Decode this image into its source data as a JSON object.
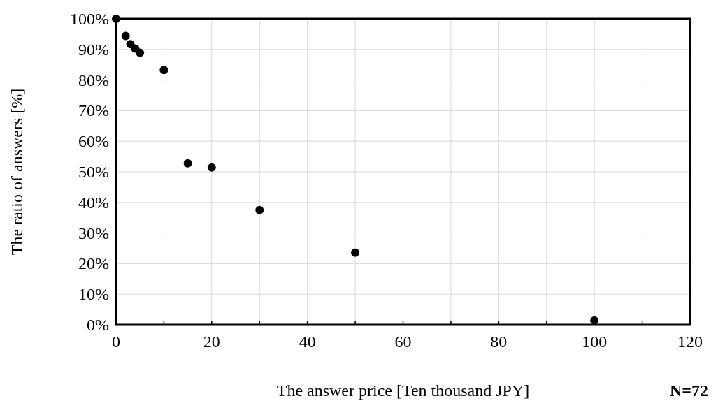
{
  "chart_data": {
    "type": "scatter",
    "xlabel": "The answer price [Ten thousand JPY]",
    "ylabel": "The ratio of answers [%]",
    "annotations": [
      "N=72"
    ],
    "x": [
      0,
      2,
      3,
      4,
      5,
      10,
      15,
      20,
      30,
      50,
      100
    ],
    "series": [
      {
        "color": "#000000",
        "values": [
          100,
          94.4,
          91.7,
          90.3,
          88.9,
          83.3,
          52.8,
          51.4,
          37.5,
          23.6,
          1.4
        ]
      }
    ],
    "xlim": [
      0,
      120
    ],
    "xticks": [
      0,
      {
        "value": 10,
        "label": null
      },
      20,
      {
        "value": 30,
        "label": null
      },
      40,
      {
        "value": 50,
        "label": null
      },
      60,
      {
        "value": 70,
        "label": null
      },
      80,
      {
        "value": 90,
        "label": null
      },
      100,
      {
        "value": 110,
        "label": null
      },
      120
    ],
    "ylim": [
      0,
      100
    ],
    "yticks": [
      {
        "value": 0,
        "label": "0%"
      },
      {
        "value": 10,
        "label": "10%"
      },
      {
        "value": 20,
        "label": "20%"
      },
      {
        "value": 30,
        "label": "30%"
      },
      {
        "value": 40,
        "label": "40%"
      },
      {
        "value": 50,
        "label": "50%"
      },
      {
        "value": 60,
        "label": "60%"
      },
      {
        "value": 70,
        "label": "70%"
      },
      {
        "value": 80,
        "label": "80%"
      },
      {
        "value": 90,
        "label": "90%"
      },
      {
        "value": 100,
        "label": "100%"
      }
    ],
    "grid": true,
    "marker": "circle"
  }
}
